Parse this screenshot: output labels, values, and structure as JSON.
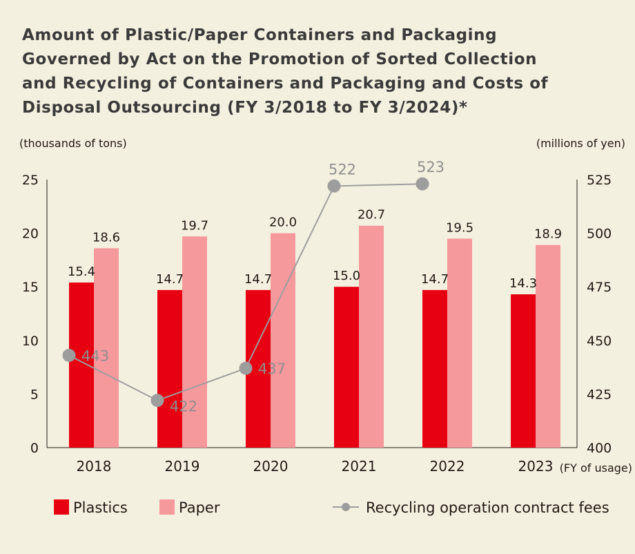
{
  "chart_data": {
    "type": "bar",
    "title_lines": [
      "Amount of Plastic/Paper Containers and Packaging",
      "Governed by Act on the Promotion of Sorted Collection",
      "and Recycling of Containers and Packaging and Costs of",
      "Disposal Outsourcing (FY 3/2018 to FY 3/2024)*"
    ],
    "y_left_unit": "(thousands of tons)",
    "y_right_unit": "(millions of yen)",
    "x_unit": "(FY of usage)",
    "categories": [
      "2018",
      "2019",
      "2020",
      "2021",
      "2022",
      "2023"
    ],
    "y_left_ticks": [
      "0",
      "5",
      "10",
      "15",
      "20",
      "25"
    ],
    "y_right_ticks": [
      "400",
      "425",
      "450",
      "475",
      "500",
      "525"
    ],
    "ylim_left": [
      0,
      25
    ],
    "ylim_right": [
      400,
      525
    ],
    "series": [
      {
        "name": "Plastics",
        "kind": "bar",
        "axis": "left",
        "color": "#e60012",
        "values": [
          15.4,
          14.7,
          14.7,
          15.0,
          14.7,
          14.3
        ],
        "labels": [
          "15.4",
          "14.7",
          "14.7",
          "15.0",
          "14.7",
          "14.3"
        ]
      },
      {
        "name": "Paper",
        "kind": "bar",
        "axis": "left",
        "color": "#f6999d",
        "values": [
          18.6,
          19.7,
          20.0,
          20.7,
          19.5,
          18.9
        ],
        "labels": [
          "18.6",
          "19.7",
          "20.0",
          "20.7",
          "19.5",
          "18.9"
        ]
      },
      {
        "name": "Recycling operation contract fees",
        "kind": "line",
        "axis": "right",
        "color": "#9d9d9d",
        "values": [
          443,
          422,
          437,
          522,
          523,
          null
        ],
        "labels": [
          "443",
          "422",
          "437",
          "522",
          "523",
          ""
        ]
      }
    ],
    "legend_placement": "bottom",
    "grid": false
  }
}
